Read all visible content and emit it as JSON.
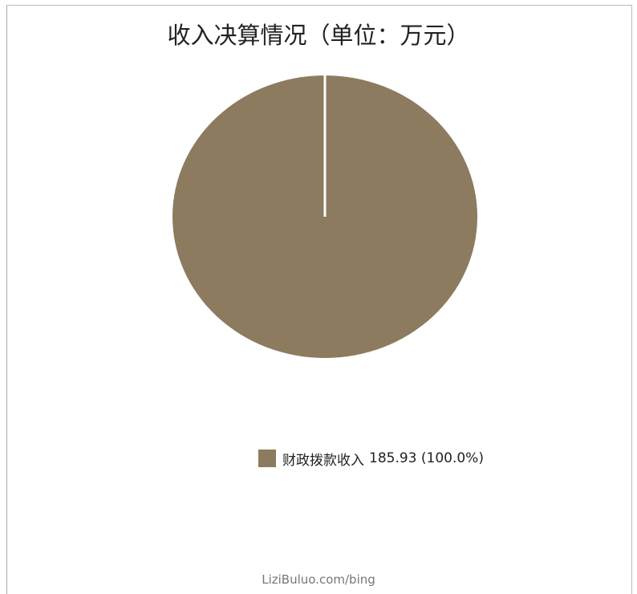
{
  "chart_data": {
    "type": "pie",
    "title": "收入决算情况（单位：万元）",
    "slices": [
      {
        "label": "财政拨款收入",
        "value": 185.93,
        "percent": "100.0%",
        "color": "#8c7b5f"
      }
    ],
    "legend_placement": "bottom-center",
    "legend_entries": [
      {
        "label": "财政拨款收入",
        "value_text": "185.93 (100.0%)"
      }
    ]
  },
  "watermark": "LiziBuluo.com/bing"
}
